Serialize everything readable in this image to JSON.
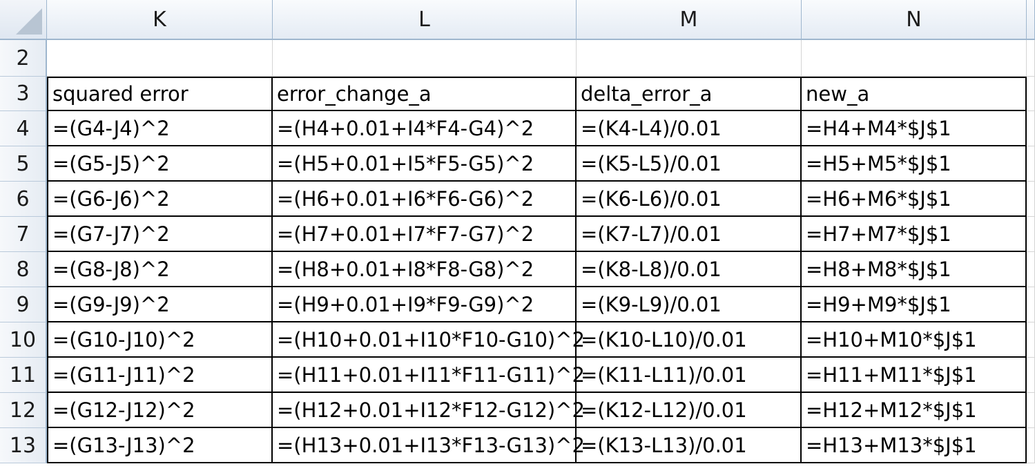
{
  "columns": [
    {
      "label": "K"
    },
    {
      "label": "L"
    },
    {
      "label": "M"
    },
    {
      "label": "N"
    }
  ],
  "rows": [
    {
      "number": "2",
      "cells": [
        "",
        "",
        "",
        ""
      ]
    },
    {
      "number": "3",
      "cells": [
        "squared error",
        "error_change_a",
        "delta_error_a",
        "new_a"
      ]
    },
    {
      "number": "4",
      "cells": [
        "=(G4-J4)^2",
        "=(H4+0.01+I4*F4-G4)^2",
        "=(K4-L4)/0.01",
        "=H4+M4*$J$1"
      ]
    },
    {
      "number": "5",
      "cells": [
        "=(G5-J5)^2",
        "=(H5+0.01+I5*F5-G5)^2",
        "=(K5-L5)/0.01",
        "=H5+M5*$J$1"
      ]
    },
    {
      "number": "6",
      "cells": [
        "=(G6-J6)^2",
        "=(H6+0.01+I6*F6-G6)^2",
        "=(K6-L6)/0.01",
        "=H6+M6*$J$1"
      ]
    },
    {
      "number": "7",
      "cells": [
        "=(G7-J7)^2",
        "=(H7+0.01+I7*F7-G7)^2",
        "=(K7-L7)/0.01",
        "=H7+M7*$J$1"
      ]
    },
    {
      "number": "8",
      "cells": [
        "=(G8-J8)^2",
        "=(H8+0.01+I8*F8-G8)^2",
        "=(K8-L8)/0.01",
        "=H8+M8*$J$1"
      ]
    },
    {
      "number": "9",
      "cells": [
        "=(G9-J9)^2",
        "=(H9+0.01+I9*F9-G9)^2",
        "=(K9-L9)/0.01",
        "=H9+M9*$J$1"
      ]
    },
    {
      "number": "10",
      "cells": [
        "=(G10-J10)^2",
        "=(H10+0.01+I10*F10-G10)^2",
        "=(K10-L10)/0.01",
        "=H10+M10*$J$1"
      ]
    },
    {
      "number": "11",
      "cells": [
        "=(G11-J11)^2",
        "=(H11+0.01+I11*F11-G11)^2",
        "=(K11-L11)/0.01",
        "=H11+M11*$J$1"
      ]
    },
    {
      "number": "12",
      "cells": [
        "=(G12-J12)^2",
        "=(H12+0.01+I12*F12-G12)^2",
        "=(K12-L12)/0.01",
        "=H12+M12*$J$1"
      ]
    },
    {
      "number": "13",
      "cells": [
        "=(G13-J13)^2",
        "=(H13+0.01+I13*F13-G13)^2",
        "=(K13-L13)/0.01",
        "=H13+M13*$J$1"
      ]
    }
  ],
  "colors": {
    "header_border": "#9eb6ce",
    "grid_line": "#d4d4d4",
    "cell_border": "#000000"
  }
}
